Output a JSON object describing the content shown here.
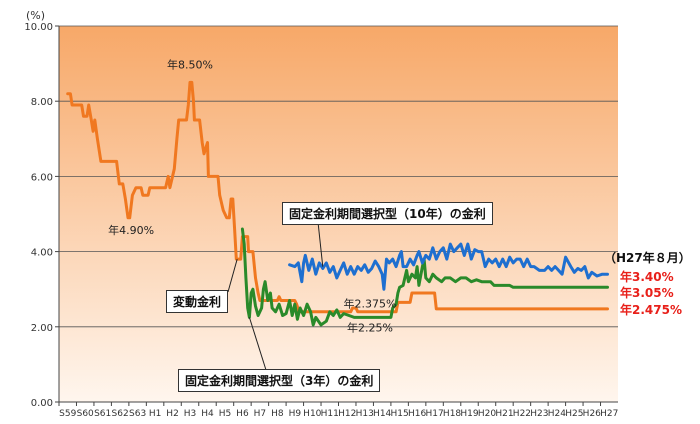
{
  "chart_data": {
    "type": "line",
    "yunit": "(%)",
    "ylim": [
      0,
      10
    ],
    "yticks": [
      "0.00",
      "2.00",
      "4.00",
      "6.00",
      "8.00",
      "10.00"
    ],
    "xlabels": [
      "S59",
      "S60",
      "S61",
      "S62",
      "S63",
      "H1",
      "H2",
      "H3",
      "H4",
      "H5",
      "H6",
      "H7",
      "H8",
      "H9",
      "H10",
      "H11",
      "H12",
      "H13",
      "H14",
      "H15",
      "H16",
      "H17",
      "H18",
      "H19",
      "H20",
      "H21",
      "H22",
      "H23",
      "H24",
      "H25",
      "H26",
      "H27"
    ],
    "grid": true,
    "series": [
      {
        "name": "変動金利",
        "color": "#f07820",
        "points": [
          [
            0.0,
            8.2
          ],
          [
            0.15,
            8.2
          ],
          [
            0.25,
            7.9
          ],
          [
            0.8,
            7.9
          ],
          [
            0.9,
            7.6
          ],
          [
            1.1,
            7.6
          ],
          [
            1.2,
            7.9
          ],
          [
            1.35,
            7.5
          ],
          [
            1.45,
            7.2
          ],
          [
            1.55,
            7.5
          ],
          [
            1.7,
            7.0
          ],
          [
            1.9,
            6.4
          ],
          [
            2.8,
            6.4
          ],
          [
            2.95,
            5.8
          ],
          [
            3.15,
            5.8
          ],
          [
            3.3,
            5.4
          ],
          [
            3.45,
            4.9
          ],
          [
            3.55,
            4.9
          ],
          [
            3.7,
            5.5
          ],
          [
            3.9,
            5.7
          ],
          [
            4.2,
            5.7
          ],
          [
            4.3,
            5.5
          ],
          [
            4.6,
            5.5
          ],
          [
            4.7,
            5.7
          ],
          [
            5.6,
            5.7
          ],
          [
            5.75,
            6.0
          ],
          [
            5.85,
            5.7
          ],
          [
            6.1,
            6.2
          ],
          [
            6.25,
            7.0
          ],
          [
            6.35,
            7.5
          ],
          [
            6.8,
            7.5
          ],
          [
            6.9,
            7.9
          ],
          [
            7.0,
            8.5
          ],
          [
            7.1,
            8.5
          ],
          [
            7.2,
            8.0
          ],
          [
            7.25,
            7.5
          ],
          [
            7.55,
            7.5
          ],
          [
            7.7,
            6.9
          ],
          [
            7.8,
            6.6
          ],
          [
            8.0,
            6.9
          ],
          [
            8.05,
            6.0
          ],
          [
            8.6,
            6.0
          ],
          [
            8.7,
            5.5
          ],
          [
            8.9,
            5.1
          ],
          [
            9.1,
            4.9
          ],
          [
            9.25,
            4.9
          ],
          [
            9.35,
            5.4
          ],
          [
            9.45,
            5.4
          ],
          [
            9.55,
            4.6
          ],
          [
            9.65,
            3.8
          ],
          [
            9.9,
            3.8
          ],
          [
            10.0,
            4.4
          ],
          [
            10.3,
            4.4
          ],
          [
            10.35,
            4.0
          ],
          [
            10.6,
            4.0
          ],
          [
            10.75,
            3.3
          ],
          [
            10.9,
            2.9
          ],
          [
            11.0,
            2.7
          ],
          [
            12.0,
            2.7
          ],
          [
            12.1,
            2.8
          ],
          [
            12.2,
            2.7
          ],
          [
            13.0,
            2.7
          ],
          [
            13.1,
            2.6
          ],
          [
            13.25,
            2.4
          ],
          [
            16.2,
            2.4
          ],
          [
            16.3,
            2.5
          ],
          [
            16.5,
            2.5
          ],
          [
            16.6,
            2.4
          ],
          [
            18.8,
            2.4
          ],
          [
            18.9,
            2.65
          ],
          [
            19.6,
            2.65
          ],
          [
            19.7,
            2.9
          ],
          [
            21.0,
            2.9
          ],
          [
            21.1,
            2.475
          ],
          [
            30.9,
            2.475
          ]
        ]
      },
      {
        "name": "固定金利期間選択型（3年）の金利",
        "color": "#2a8a2a",
        "points": [
          [
            10.0,
            4.6
          ],
          [
            10.1,
            4.2
          ],
          [
            10.2,
            3.3
          ],
          [
            10.3,
            2.5
          ],
          [
            10.4,
            2.25
          ],
          [
            10.5,
            2.9
          ],
          [
            10.6,
            3.0
          ],
          [
            10.75,
            2.55
          ],
          [
            10.9,
            2.3
          ],
          [
            11.1,
            2.5
          ],
          [
            11.2,
            3.0
          ],
          [
            11.3,
            3.2
          ],
          [
            11.45,
            2.7
          ],
          [
            11.6,
            2.9
          ],
          [
            11.7,
            2.5
          ],
          [
            11.9,
            2.4
          ],
          [
            12.1,
            2.6
          ],
          [
            12.3,
            2.3
          ],
          [
            12.5,
            2.35
          ],
          [
            12.7,
            2.7
          ],
          [
            12.85,
            2.3
          ],
          [
            13.0,
            2.6
          ],
          [
            13.15,
            2.2
          ],
          [
            13.3,
            2.5
          ],
          [
            13.5,
            2.3
          ],
          [
            13.7,
            2.6
          ],
          [
            13.9,
            2.4
          ],
          [
            14.05,
            2.05
          ],
          [
            14.2,
            2.25
          ],
          [
            14.5,
            2.05
          ],
          [
            14.8,
            2.15
          ],
          [
            15.0,
            2.4
          ],
          [
            15.2,
            2.3
          ],
          [
            15.4,
            2.45
          ],
          [
            15.6,
            2.25
          ],
          [
            15.8,
            2.35
          ],
          [
            16.1,
            2.3
          ],
          [
            16.4,
            2.25
          ],
          [
            18.5,
            2.25
          ],
          [
            18.6,
            2.5
          ],
          [
            18.8,
            2.6
          ],
          [
            18.9,
            2.9
          ],
          [
            19.0,
            3.05
          ],
          [
            19.2,
            3.1
          ],
          [
            19.4,
            3.5
          ],
          [
            19.5,
            3.2
          ],
          [
            19.7,
            3.4
          ],
          [
            19.9,
            3.3
          ],
          [
            20.0,
            3.6
          ],
          [
            20.1,
            3.1
          ],
          [
            20.3,
            3.6
          ],
          [
            20.4,
            3.8
          ],
          [
            20.5,
            3.3
          ],
          [
            20.7,
            3.2
          ],
          [
            20.9,
            3.4
          ],
          [
            21.1,
            3.3
          ],
          [
            21.4,
            3.2
          ],
          [
            21.6,
            3.3
          ],
          [
            21.9,
            3.3
          ],
          [
            22.2,
            3.2
          ],
          [
            22.5,
            3.3
          ],
          [
            22.8,
            3.3
          ],
          [
            23.1,
            3.2
          ],
          [
            23.4,
            3.25
          ],
          [
            23.7,
            3.2
          ],
          [
            24.2,
            3.2
          ],
          [
            24.4,
            3.1
          ],
          [
            25.3,
            3.1
          ],
          [
            25.5,
            3.05
          ],
          [
            30.9,
            3.05
          ]
        ]
      },
      {
        "name": "固定金利期間選択型（10年）の金利",
        "color": "#1e6fd0",
        "points": [
          [
            12.7,
            3.65
          ],
          [
            13.0,
            3.6
          ],
          [
            13.2,
            3.7
          ],
          [
            13.4,
            3.2
          ],
          [
            13.5,
            3.7
          ],
          [
            13.6,
            3.9
          ],
          [
            13.8,
            3.5
          ],
          [
            14.0,
            3.8
          ],
          [
            14.2,
            3.4
          ],
          [
            14.4,
            3.7
          ],
          [
            14.6,
            3.55
          ],
          [
            14.8,
            3.7
          ],
          [
            15.0,
            3.45
          ],
          [
            15.2,
            3.6
          ],
          [
            15.4,
            3.3
          ],
          [
            15.6,
            3.5
          ],
          [
            15.8,
            3.7
          ],
          [
            16.0,
            3.4
          ],
          [
            16.2,
            3.6
          ],
          [
            16.4,
            3.4
          ],
          [
            16.6,
            3.6
          ],
          [
            16.8,
            3.5
          ],
          [
            17.0,
            3.65
          ],
          [
            17.2,
            3.45
          ],
          [
            17.4,
            3.55
          ],
          [
            17.6,
            3.75
          ],
          [
            17.8,
            3.6
          ],
          [
            18.0,
            3.4
          ],
          [
            18.1,
            3.0
          ],
          [
            18.25,
            3.8
          ],
          [
            18.4,
            3.7
          ],
          [
            18.6,
            3.8
          ],
          [
            18.8,
            3.6
          ],
          [
            19.0,
            3.9
          ],
          [
            19.1,
            4.0
          ],
          [
            19.2,
            3.6
          ],
          [
            19.4,
            3.6
          ],
          [
            19.6,
            3.8
          ],
          [
            19.8,
            3.65
          ],
          [
            20.0,
            3.9
          ],
          [
            20.1,
            4.0
          ],
          [
            20.3,
            3.7
          ],
          [
            20.5,
            3.9
          ],
          [
            20.7,
            3.8
          ],
          [
            20.9,
            4.1
          ],
          [
            21.1,
            3.8
          ],
          [
            21.3,
            4.0
          ],
          [
            21.5,
            4.1
          ],
          [
            21.7,
            3.8
          ],
          [
            21.9,
            4.2
          ],
          [
            22.1,
            4.0
          ],
          [
            22.3,
            4.1
          ],
          [
            22.5,
            4.2
          ],
          [
            22.7,
            3.9
          ],
          [
            22.9,
            4.2
          ],
          [
            23.1,
            3.8
          ],
          [
            23.3,
            4.05
          ],
          [
            23.5,
            4.0
          ],
          [
            23.7,
            4.0
          ],
          [
            23.9,
            3.6
          ],
          [
            24.1,
            3.8
          ],
          [
            24.3,
            3.7
          ],
          [
            24.5,
            3.8
          ],
          [
            24.7,
            3.6
          ],
          [
            24.9,
            3.8
          ],
          [
            25.1,
            3.6
          ],
          [
            25.3,
            3.85
          ],
          [
            25.5,
            3.7
          ],
          [
            25.7,
            3.8
          ],
          [
            25.9,
            3.8
          ],
          [
            26.1,
            3.6
          ],
          [
            26.3,
            3.8
          ],
          [
            26.5,
            3.6
          ],
          [
            26.7,
            3.6
          ],
          [
            27.0,
            3.5
          ],
          [
            27.3,
            3.5
          ],
          [
            27.5,
            3.6
          ],
          [
            27.7,
            3.5
          ],
          [
            27.9,
            3.6
          ],
          [
            28.1,
            3.5
          ],
          [
            28.3,
            3.4
          ],
          [
            28.5,
            3.85
          ],
          [
            28.8,
            3.6
          ],
          [
            29.0,
            3.45
          ],
          [
            29.2,
            3.55
          ],
          [
            29.4,
            3.5
          ],
          [
            29.6,
            3.6
          ],
          [
            29.8,
            3.3
          ],
          [
            30.0,
            3.45
          ],
          [
            30.3,
            3.35
          ],
          [
            30.6,
            3.4
          ],
          [
            30.9,
            3.4
          ]
        ]
      }
    ],
    "annotations": [
      {
        "text": "年8.50%",
        "x": 7.0,
        "y": 8.5
      },
      {
        "text": "年4.90%",
        "x": 3.4,
        "y": 4.9
      },
      {
        "text": "年2.375%",
        "x": 17.3,
        "y": 2.375
      },
      {
        "text": "年2.25%",
        "x": 17.3,
        "y": 2.25
      }
    ],
    "callouts": {
      "variable": "変動金利",
      "fixed10": "固定金利期間選択型（10年）の金利",
      "fixed3": "固定金利期間選択型（3年）の金利"
    },
    "end_labels": {
      "date": "（H27年８月）",
      "fixed10": "年3.40%",
      "fixed3": "年3.05%",
      "variable": "年2.475%"
    }
  }
}
